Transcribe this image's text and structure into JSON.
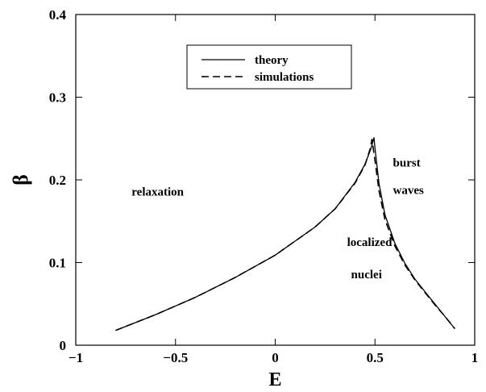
{
  "chart_data": {
    "type": "line",
    "xlabel": "E",
    "ylabel": "β",
    "xlim": [
      -1,
      1
    ],
    "ylim": [
      0,
      0.4
    ],
    "x_ticks": [
      "−1",
      "−0.5",
      "0",
      "0.5",
      "1"
    ],
    "y_ticks": [
      "0",
      "0.1",
      "0.2",
      "0.3",
      "0.4"
    ],
    "grid": false,
    "legend_position": "top-center",
    "series": [
      {
        "name": "theory",
        "style": "solid",
        "color": "#000000",
        "x": [
          -0.8,
          -0.6,
          -0.4,
          -0.2,
          0.0,
          0.2,
          0.3,
          0.4,
          0.45,
          0.48,
          0.495,
          0.5,
          0.52,
          0.55,
          0.6,
          0.65,
          0.7,
          0.75,
          0.8,
          0.85,
          0.9
        ],
        "y": [
          0.018,
          0.037,
          0.058,
          0.082,
          0.109,
          0.143,
          0.165,
          0.197,
          0.219,
          0.238,
          0.251,
          0.238,
          0.196,
          0.158,
          0.123,
          0.099,
          0.08,
          0.065,
          0.05,
          0.035,
          0.02
        ]
      },
      {
        "name": "simulations",
        "style": "dashed",
        "color": "#000000",
        "x": [
          -0.8,
          -0.6,
          -0.4,
          -0.2,
          0.0,
          0.2,
          0.3,
          0.4,
          0.45,
          0.475,
          0.485,
          0.5,
          0.52,
          0.55,
          0.6,
          0.65,
          0.7,
          0.75,
          0.8,
          0.85,
          0.9
        ],
        "y": [
          0.018,
          0.037,
          0.058,
          0.082,
          0.109,
          0.143,
          0.165,
          0.196,
          0.218,
          0.237,
          0.249,
          0.223,
          0.187,
          0.152,
          0.12,
          0.097,
          0.079,
          0.064,
          0.049,
          0.035,
          0.02
        ]
      }
    ],
    "annotations": [
      {
        "text": "relaxation",
        "x": -0.72,
        "y": 0.181
      },
      {
        "text": "localized",
        "x": 0.36,
        "y": 0.12
      },
      {
        "text": "nuclei",
        "x": 0.38,
        "y": 0.081
      },
      {
        "text": "burst",
        "x": 0.59,
        "y": 0.216
      },
      {
        "text": "waves",
        "x": 0.59,
        "y": 0.183
      }
    ]
  }
}
